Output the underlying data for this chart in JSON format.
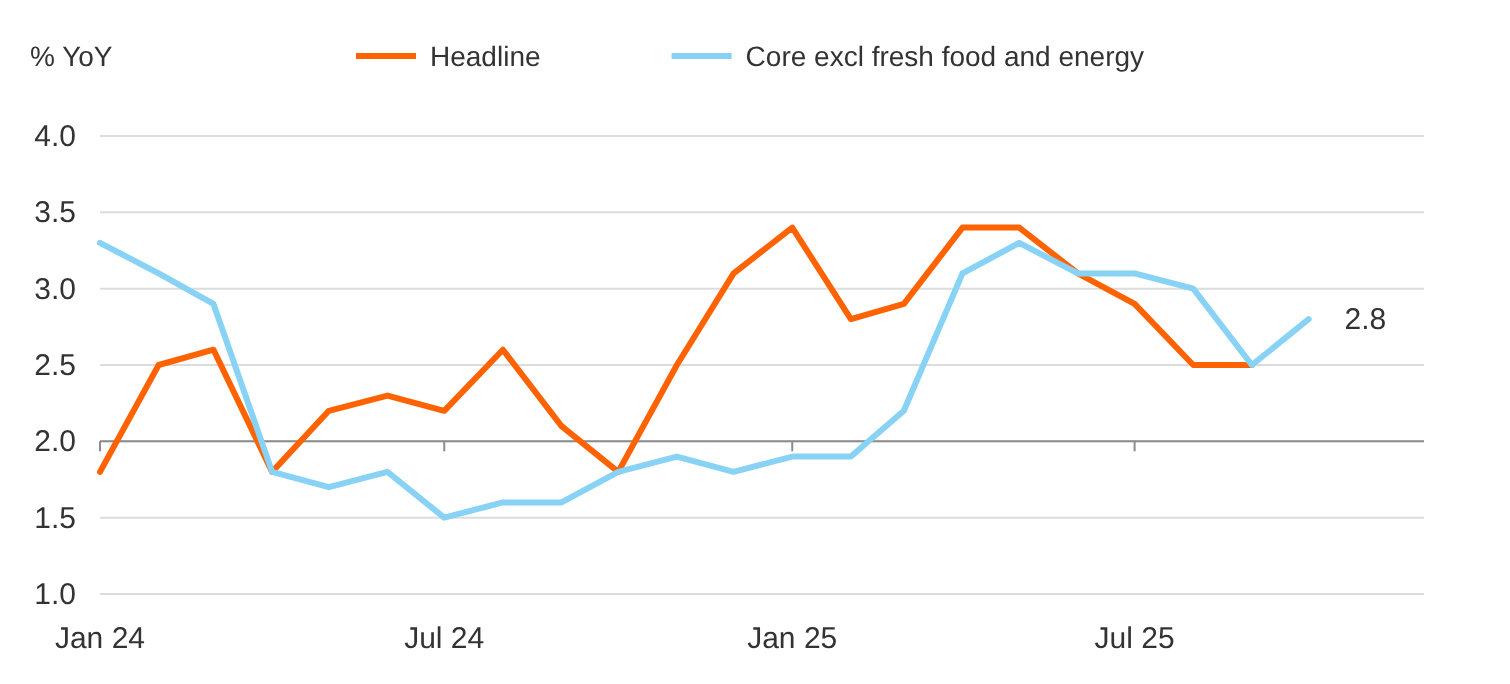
{
  "chart_data": {
    "type": "line",
    "ylabel": "% YoY",
    "legend": "top",
    "x": [
      "2024-01",
      "2024-02",
      "2024-03",
      "2024-04",
      "2024-05",
      "2024-06",
      "2024-07",
      "2024-08",
      "2024-09",
      "2024-10",
      "2024-11",
      "2024-12",
      "2025-01",
      "2025-02",
      "2025-03",
      "2025-04",
      "2025-05",
      "2025-06",
      "2025-07",
      "2025-08",
      "2025-09",
      "2025-10"
    ],
    "series": [
      {
        "name": "Headline",
        "color": "#ff6200",
        "values": [
          1.8,
          2.5,
          2.6,
          1.8,
          2.2,
          2.3,
          2.2,
          2.6,
          2.1,
          1.8,
          2.5,
          3.1,
          3.4,
          2.8,
          2.9,
          3.4,
          3.4,
          3.1,
          2.9,
          2.5,
          2.5,
          null
        ]
      },
      {
        "name": "Core excl fresh food and energy",
        "color": "#87d2f5",
        "values": [
          3.3,
          3.1,
          2.9,
          1.8,
          1.7,
          1.8,
          1.5,
          1.6,
          1.6,
          1.8,
          1.9,
          1.8,
          1.9,
          1.9,
          2.2,
          3.1,
          3.3,
          3.1,
          3.1,
          3.0,
          2.5,
          2.8
        ]
      }
    ],
    "xlim": [
      "2024-01",
      "2025-12"
    ],
    "xticks": [
      {
        "value": "2024-01",
        "label": "Jan 24"
      },
      {
        "value": "2024-07",
        "label": "Jul 24"
      },
      {
        "value": "2025-01",
        "label": "Jan 25"
      },
      {
        "value": "2025-07",
        "label": "Jul 25"
      }
    ],
    "ylim": [
      1.0,
      4.0
    ],
    "yticks": [
      {
        "value": 1.0,
        "label": "1.0"
      },
      {
        "value": 1.5,
        "label": "1.5"
      },
      {
        "value": 2.0,
        "label": "2.0"
      },
      {
        "value": 2.5,
        "label": "2.5"
      },
      {
        "value": 3.0,
        "label": "3.0"
      },
      {
        "value": 3.5,
        "label": "3.5"
      },
      {
        "value": 4.0,
        "label": "4.0"
      }
    ],
    "grid": "y",
    "ref_lines": [
      {
        "axis": "y",
        "value": 2.0,
        "color": "#8c8c8c"
      }
    ],
    "annotations": [
      {
        "text": "2.8",
        "x": "2025-10",
        "y": 2.8
      }
    ]
  }
}
